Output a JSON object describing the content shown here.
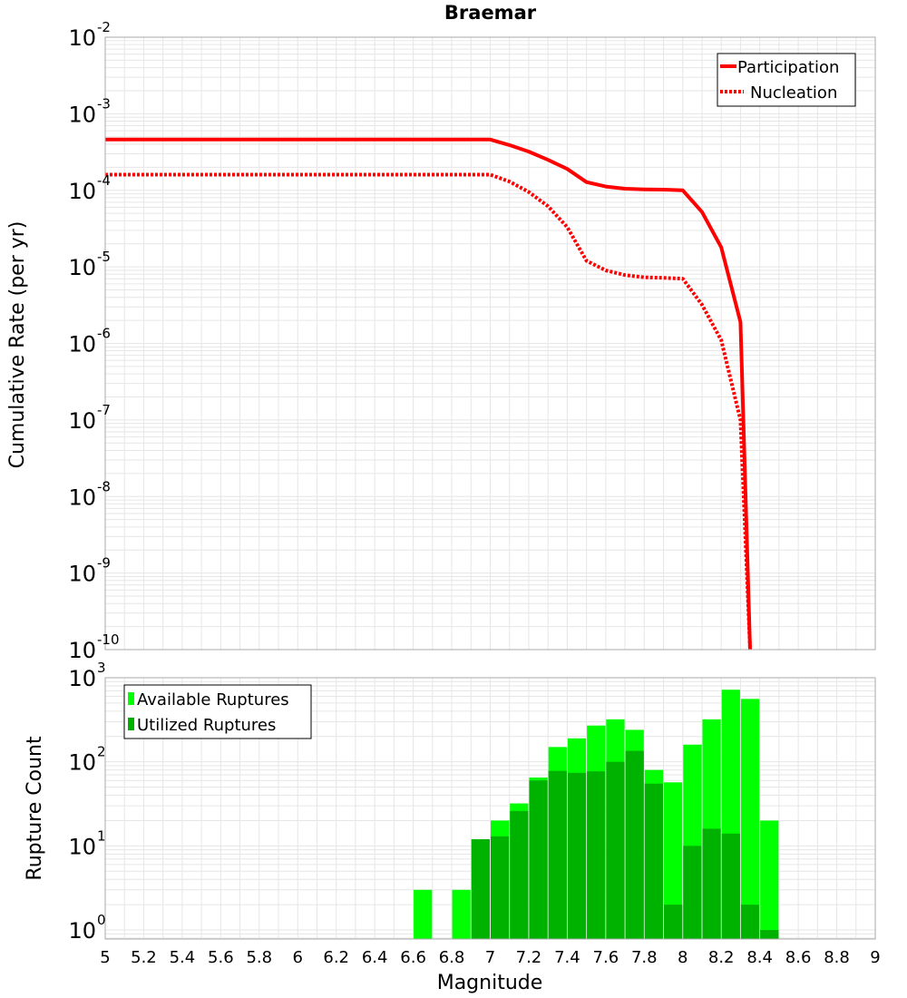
{
  "title": "Braemar",
  "colors": {
    "participation": "#ff0000",
    "nucleation": "#ff0000",
    "available": "#00ff00",
    "utilized": "#00b200",
    "grid": "#e6e6e6"
  },
  "chart_data": [
    {
      "type": "line",
      "ylabel": "Cumulative Rate (per yr)",
      "yscale": "log",
      "ylim": [
        1e-10,
        0.01
      ],
      "xlim": [
        5,
        9
      ],
      "y_tick_exponents": [
        "-2",
        "-3",
        "-4",
        "-5",
        "-6",
        "-7",
        "-8",
        "-9",
        "-10"
      ],
      "legend": {
        "position": "top-right",
        "entries": [
          "Participation",
          "Nucleation"
        ]
      },
      "series": [
        {
          "name": "Participation",
          "style": "solid",
          "x": [
            5.0,
            5.5,
            6.0,
            6.5,
            7.0,
            7.1,
            7.2,
            7.3,
            7.4,
            7.5,
            7.6,
            7.7,
            7.8,
            7.9,
            8.0,
            8.1,
            8.2,
            8.3,
            8.35
          ],
          "y": [
            0.00046,
            0.00046,
            0.00046,
            0.00046,
            0.00046,
            0.00039,
            0.00032,
            0.00025,
            0.00019,
            0.000128,
            0.000112,
            0.000105,
            0.000103,
            0.000102,
            0.0001,
            5.2e-05,
            1.8e-05,
            1.9e-06,
            1e-10
          ]
        },
        {
          "name": "Nucleation",
          "style": "dotted",
          "x": [
            5.0,
            5.5,
            6.0,
            6.5,
            7.0,
            7.1,
            7.2,
            7.3,
            7.4,
            7.5,
            7.6,
            7.7,
            7.8,
            7.9,
            8.0,
            8.1,
            8.2,
            8.3,
            8.35
          ],
          "y": [
            0.00016,
            0.00016,
            0.00016,
            0.00016,
            0.00016,
            0.00013,
            9.5e-05,
            6.2e-05,
            3.3e-05,
            1.2e-05,
            9e-06,
            7.8e-06,
            7.3e-06,
            7.2e-06,
            7e-06,
            3.2e-06,
            1.1e-06,
            1e-07,
            1e-10
          ]
        }
      ]
    },
    {
      "type": "bar",
      "ylabel": "Rupture Count",
      "xlabel": "Magnitude",
      "yscale": "log",
      "ylim": [
        0.78,
        1000
      ],
      "xlim": [
        5,
        9
      ],
      "y_tick_exponents": [
        "3",
        "2",
        "1",
        "0"
      ],
      "x_ticks": [
        "5",
        "5.2",
        "5.4",
        "5.6",
        "5.8",
        "6",
        "6.2",
        "6.4",
        "6.6",
        "6.8",
        "7",
        "7.2",
        "7.4",
        "7.6",
        "7.8",
        "8",
        "8.2",
        "8.4",
        "8.6",
        "8.8",
        "9"
      ],
      "legend": {
        "position": "top-left",
        "entries": [
          "Available Ruptures",
          "Utilized Ruptures"
        ]
      },
      "bin_width": 0.1,
      "series": [
        {
          "name": "Available Ruptures",
          "x": [
            6.65,
            6.85,
            6.95,
            7.05,
            7.15,
            7.25,
            7.35,
            7.45,
            7.55,
            7.65,
            7.75,
            7.85,
            7.95,
            8.05,
            8.15,
            8.25,
            8.35,
            8.45
          ],
          "values": [
            3,
            3,
            12,
            20,
            32,
            65,
            150,
            190,
            270,
            320,
            240,
            80,
            57,
            160,
            320,
            720,
            560,
            20
          ]
        },
        {
          "name": "Utilized Ruptures",
          "x": [
            6.95,
            7.05,
            7.15,
            7.25,
            7.35,
            7.45,
            7.55,
            7.65,
            7.75,
            7.85,
            7.95,
            8.05,
            8.15,
            8.25,
            8.35,
            8.45
          ],
          "values": [
            12,
            13,
            26,
            60,
            78,
            74,
            77,
            100,
            135,
            55,
            2,
            10,
            16,
            14,
            2,
            1
          ]
        }
      ]
    }
  ]
}
